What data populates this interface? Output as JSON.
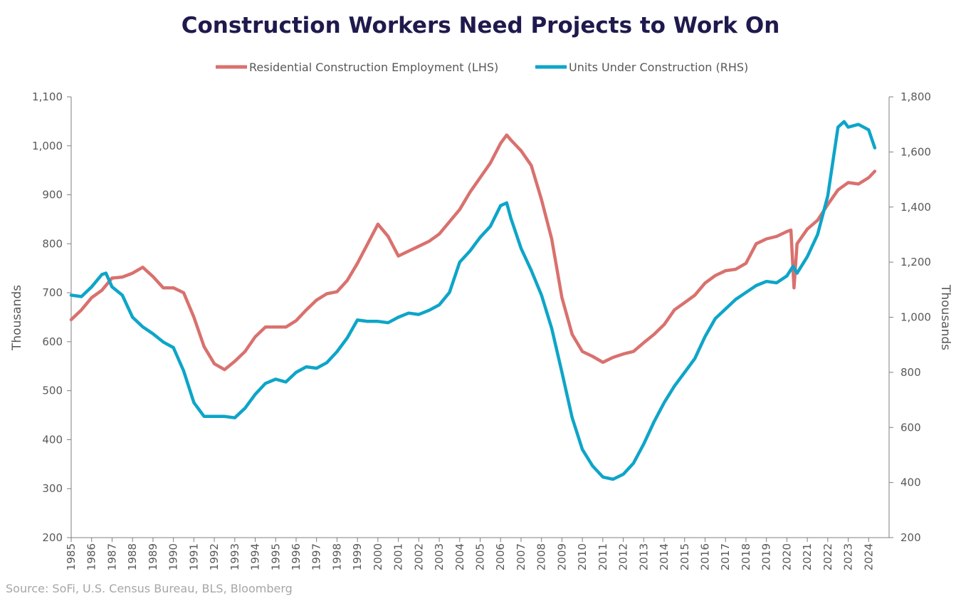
{
  "chart_data": {
    "type": "line",
    "title": "Construction Workers Need Projects to Work On",
    "ylabel_left": "Thousands",
    "ylabel_right": "Thousands",
    "ylim_left": [
      200,
      1100
    ],
    "ylim_right": [
      200,
      1800
    ],
    "yticks_left": [
      "200",
      "300",
      "400",
      "500",
      "600",
      "700",
      "800",
      "900",
      "1,000",
      "1,100"
    ],
    "yticks_right": [
      "200",
      "400",
      "600",
      "800",
      "1,000",
      "1,200",
      "1,400",
      "1,600",
      "1,800"
    ],
    "xlim": [
      1985,
      2025
    ],
    "xticks": [
      "1985",
      "1986",
      "1987",
      "1988",
      "1989",
      "1990",
      "1991",
      "1992",
      "1993",
      "1994",
      "1995",
      "1996",
      "1997",
      "1998",
      "1999",
      "2000",
      "2001",
      "2002",
      "2003",
      "2004",
      "2005",
      "2006",
      "2007",
      "2008",
      "2009",
      "2010",
      "2011",
      "2012",
      "2013",
      "2014",
      "2015",
      "2016",
      "2017",
      "2018",
      "2019",
      "2020",
      "2021",
      "2022",
      "2023",
      "2024"
    ],
    "legend_position": "top-center",
    "grid": false,
    "series": [
      {
        "name": "Residential Construction Employment (LHS)",
        "axis": "left",
        "color": "#d9716e",
        "x": [
          1985.0,
          1985.5,
          1986.0,
          1986.5,
          1987.0,
          1987.5,
          1988.0,
          1988.5,
          1989.0,
          1989.5,
          1990.0,
          1990.5,
          1991.0,
          1991.5,
          1992.0,
          1992.5,
          1993.0,
          1993.5,
          1994.0,
          1994.5,
          1995.0,
          1995.5,
          1996.0,
          1996.5,
          1997.0,
          1997.5,
          1998.0,
          1998.5,
          1999.0,
          1999.5,
          2000.0,
          2000.5,
          2001.0,
          2001.5,
          2002.0,
          2002.5,
          2003.0,
          2003.5,
          2004.0,
          2004.5,
          2005.0,
          2005.5,
          2006.0,
          2006.3,
          2006.5,
          2007.0,
          2007.5,
          2008.0,
          2008.5,
          2009.0,
          2009.5,
          2010.0,
          2010.5,
          2011.0,
          2011.5,
          2012.0,
          2012.5,
          2013.0,
          2013.5,
          2014.0,
          2014.5,
          2015.0,
          2015.5,
          2016.0,
          2016.5,
          2017.0,
          2017.5,
          2018.0,
          2018.5,
          2019.0,
          2019.5,
          2020.0,
          2020.2,
          2020.35,
          2020.5,
          2021.0,
          2021.5,
          2022.0,
          2022.5,
          2023.0,
          2023.5,
          2024.0,
          2024.3
        ],
        "values": [
          645,
          665,
          690,
          705,
          730,
          732,
          740,
          752,
          733,
          710,
          710,
          700,
          650,
          590,
          555,
          543,
          560,
          580,
          610,
          630,
          630,
          630,
          643,
          665,
          685,
          698,
          702,
          725,
          760,
          800,
          840,
          815,
          775,
          785,
          795,
          805,
          820,
          845,
          870,
          905,
          935,
          965,
          1005,
          1022,
          1012,
          990,
          960,
          890,
          810,
          690,
          615,
          580,
          570,
          558,
          568,
          575,
          580,
          598,
          615,
          635,
          665,
          680,
          695,
          720,
          735,
          745,
          748,
          760,
          800,
          810,
          815,
          825,
          828,
          710,
          800,
          830,
          848,
          880,
          910,
          925,
          922,
          935,
          948
        ]
      },
      {
        "name": "Units Under Construction (RHS)",
        "axis": "right",
        "color": "#0ea5c8",
        "x": [
          1985.0,
          1985.5,
          1986.0,
          1986.5,
          1986.7,
          1987.0,
          1987.5,
          1988.0,
          1988.5,
          1989.0,
          1989.5,
          1990.0,
          1990.5,
          1991.0,
          1991.5,
          1992.0,
          1992.5,
          1993.0,
          1993.5,
          1994.0,
          1994.5,
          1995.0,
          1995.5,
          1996.0,
          1996.5,
          1997.0,
          1997.5,
          1998.0,
          1998.5,
          1999.0,
          1999.5,
          2000.0,
          2000.5,
          2001.0,
          2001.5,
          2002.0,
          2002.5,
          2003.0,
          2003.5,
          2004.0,
          2004.5,
          2005.0,
          2005.5,
          2006.0,
          2006.3,
          2006.5,
          2007.0,
          2007.5,
          2008.0,
          2008.5,
          2009.0,
          2009.5,
          2010.0,
          2010.5,
          2011.0,
          2011.5,
          2012.0,
          2012.5,
          2013.0,
          2013.5,
          2014.0,
          2014.5,
          2015.0,
          2015.5,
          2016.0,
          2016.5,
          2017.0,
          2017.5,
          2018.0,
          2018.5,
          2019.0,
          2019.5,
          2020.0,
          2020.3,
          2020.5,
          2021.0,
          2021.5,
          2022.0,
          2022.5,
          2022.8,
          2023.0,
          2023.5,
          2024.0,
          2024.3
        ],
        "values": [
          1080,
          1075,
          1110,
          1155,
          1160,
          1110,
          1080,
          1000,
          965,
          940,
          910,
          890,
          805,
          690,
          640,
          640,
          640,
          635,
          670,
          720,
          760,
          775,
          765,
          800,
          820,
          815,
          835,
          875,
          925,
          990,
          985,
          985,
          980,
          1000,
          1015,
          1010,
          1025,
          1045,
          1090,
          1200,
          1240,
          1290,
          1330,
          1405,
          1415,
          1360,
          1250,
          1170,
          1080,
          960,
          800,
          635,
          520,
          460,
          420,
          412,
          430,
          470,
          540,
          620,
          690,
          750,
          800,
          850,
          930,
          995,
          1030,
          1065,
          1090,
          1115,
          1130,
          1125,
          1150,
          1185,
          1160,
          1220,
          1300,
          1440,
          1690,
          1710,
          1690,
          1700,
          1680,
          1615
        ]
      }
    ]
  },
  "source_note": "Source: SoFi, U.S. Census Bureau, BLS, Bloomberg"
}
